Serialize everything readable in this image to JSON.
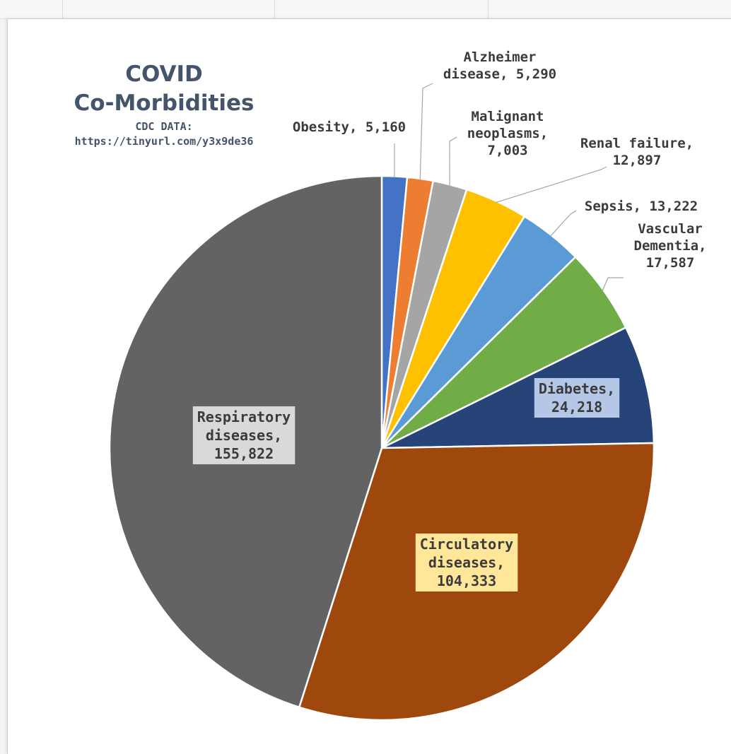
{
  "chart_data": {
    "type": "pie",
    "title": "COVID",
    "title_line2": "Co-Morbidities",
    "subtitle": "CDC DATA:",
    "subtitle_line2": "https://tinyurl.com/y3x9de36",
    "slices": [
      {
        "name": "Obesity",
        "value": 5160,
        "value_label": "5,160",
        "color": "#4472c4"
      },
      {
        "name": "Alzheimer disease",
        "value": 5290,
        "value_label": "5,290",
        "color": "#ed7d31"
      },
      {
        "name": "Malignant neoplasms",
        "value": 7003,
        "value_label": "7,003",
        "color": "#a5a5a5"
      },
      {
        "name": "Renal failure",
        "value": 12897,
        "value_label": "12,897",
        "color": "#ffc000"
      },
      {
        "name": "Sepsis",
        "value": 13222,
        "value_label": "13,222",
        "color": "#5b9bd5"
      },
      {
        "name": "Vascular Dementia",
        "value": 17587,
        "value_label": "17,587",
        "color": "#70ad47"
      },
      {
        "name": "Diabetes",
        "value": 24218,
        "value_label": "24,218",
        "color": "#264478"
      },
      {
        "name": "Circulatory diseases",
        "value": 104333,
        "value_label": "104,333",
        "color": "#9e480e"
      },
      {
        "name": "Respiratory diseases",
        "value": 155822,
        "value_label": "155,822",
        "color": "#636363"
      }
    ],
    "data_labels": [
      {
        "lines": [
          "Obesity, 5,160"
        ]
      },
      {
        "lines": [
          "Alzheimer",
          "disease, 5,290"
        ]
      },
      {
        "lines": [
          "Malignant",
          "neoplasms,",
          "7,003"
        ]
      },
      {
        "lines": [
          "Renal failure,",
          "12,897"
        ]
      },
      {
        "lines": [
          "Sepsis, 13,222"
        ]
      },
      {
        "lines": [
          "Vascular",
          "Dementia,",
          "17,587"
        ]
      },
      {
        "lines": [
          "Diabetes,",
          "24,218"
        ]
      },
      {
        "lines": [
          "Circulatory",
          "diseases,",
          "104,333"
        ]
      },
      {
        "lines": [
          "Respiratory",
          "diseases,",
          "155,822"
        ]
      }
    ]
  }
}
